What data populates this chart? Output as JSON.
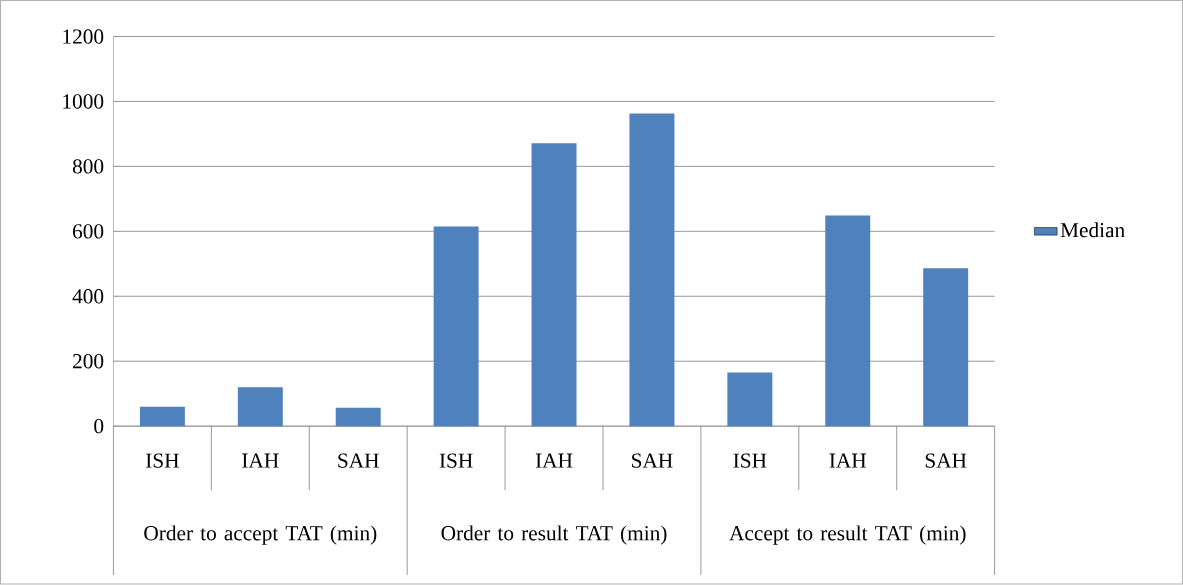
{
  "chart_data": {
    "type": "bar",
    "categories": [
      "ISH",
      "IAH",
      "SAH",
      "ISH",
      "IAH",
      "SAH",
      "ISH",
      "IAH",
      "SAH"
    ],
    "annotations": [
      "Order to accept TAT (min)",
      "Order to result TAT (min)",
      "Accept to result TAT (min)"
    ],
    "series": [
      {
        "name": "Median",
        "color": "#4f81bd",
        "values": [
          60,
          120,
          57,
          615,
          871,
          963,
          165,
          649,
          486
        ]
      }
    ],
    "ylim": [
      0,
      1200
    ],
    "yticks": [
      0,
      200,
      400,
      600,
      800,
      1000,
      1200
    ],
    "grid": "y",
    "legend": "right"
  }
}
